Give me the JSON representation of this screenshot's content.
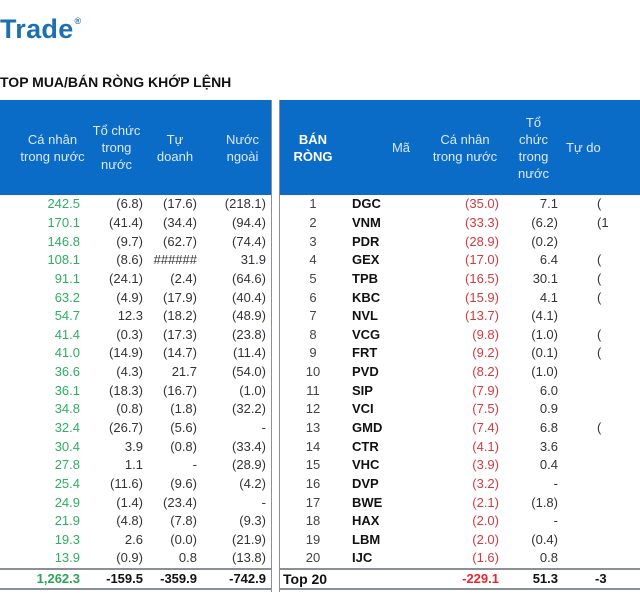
{
  "logo": {
    "text": "Trade",
    "mark": "®"
  },
  "title": "TOP MUA/BÁN RÒNG KHỚP LỆNH",
  "colors": {
    "header_bg": "#0b6cc7",
    "positive": "#2fae63",
    "negative": "#d23a40",
    "logo": "#1d70b0"
  },
  "buy_table": {
    "headers": [
      "Cá nhân trong nước",
      "Tổ chức trong nước",
      "Tự doanh",
      "Nước ngoài"
    ],
    "rows": [
      [
        "242.5",
        "(6.8)",
        "(17.6)",
        "(218.1)"
      ],
      [
        "170.1",
        "(41.4)",
        "(34.4)",
        "(94.4)"
      ],
      [
        "146.8",
        "(9.7)",
        "(62.7)",
        "(74.4)"
      ],
      [
        "108.1",
        "(8.6)",
        "######",
        "31.9"
      ],
      [
        "91.1",
        "(24.1)",
        "(2.4)",
        "(64.6)"
      ],
      [
        "63.2",
        "(4.9)",
        "(17.9)",
        "(40.4)"
      ],
      [
        "54.7",
        "12.3",
        "(18.2)",
        "(48.9)"
      ],
      [
        "41.4",
        "(0.3)",
        "(17.3)",
        "(23.8)"
      ],
      [
        "41.0",
        "(14.9)",
        "(14.7)",
        "(11.4)"
      ],
      [
        "36.6",
        "(4.3)",
        "21.7",
        "(54.0)"
      ],
      [
        "36.1",
        "(18.3)",
        "(16.7)",
        "(1.0)"
      ],
      [
        "34.8",
        "(0.8)",
        "(1.8)",
        "(32.2)"
      ],
      [
        "32.4",
        "(26.7)",
        "(5.6)",
        "-"
      ],
      [
        "30.4",
        "3.9",
        "(0.8)",
        "(33.4)"
      ],
      [
        "27.8",
        "1.1",
        "-",
        "(28.9)"
      ],
      [
        "25.4",
        "(11.6)",
        "(9.6)",
        "(4.2)"
      ],
      [
        "24.9",
        "(1.4)",
        "(23.4)",
        "-"
      ],
      [
        "21.9",
        "(4.8)",
        "(7.8)",
        "(9.3)"
      ],
      [
        "19.3",
        "2.6",
        "(0.0)",
        "(21.9)"
      ],
      [
        "13.9",
        "(0.9)",
        "0.8",
        "(13.8)"
      ]
    ],
    "total": [
      "1,262.3",
      "-159.5",
      "-359.9",
      "-742.9"
    ]
  },
  "sell_table": {
    "headers": [
      "BÁN RÒNG",
      "Mã",
      "Cá nhân trong nước",
      "Tổ chức trong nước",
      "Tự do"
    ],
    "rows": [
      [
        "1",
        "DGC",
        "(35.0)",
        "7.1",
        "("
      ],
      [
        "2",
        "VNM",
        "(33.3)",
        "(6.2)",
        "(1"
      ],
      [
        "3",
        "PDR",
        "(28.9)",
        "(0.2)",
        ""
      ],
      [
        "4",
        "GEX",
        "(17.0)",
        "6.4",
        "("
      ],
      [
        "5",
        "TPB",
        "(16.5)",
        "30.1",
        "("
      ],
      [
        "6",
        "KBC",
        "(15.9)",
        "4.1",
        "("
      ],
      [
        "7",
        "NVL",
        "(13.7)",
        "(4.1)",
        ""
      ],
      [
        "8",
        "VCG",
        "(9.8)",
        "(1.0)",
        "("
      ],
      [
        "9",
        "FRT",
        "(9.2)",
        "(0.1)",
        "("
      ],
      [
        "10",
        "PVD",
        "(8.2)",
        "(1.0)",
        ""
      ],
      [
        "11",
        "SIP",
        "(7.9)",
        "6.0",
        ""
      ],
      [
        "12",
        "VCI",
        "(7.5)",
        "0.9",
        ""
      ],
      [
        "13",
        "GMD",
        "(7.4)",
        "6.8",
        "("
      ],
      [
        "14",
        "CTR",
        "(4.1)",
        "3.6",
        ""
      ],
      [
        "15",
        "VHC",
        "(3.9)",
        "0.4",
        ""
      ],
      [
        "16",
        "DVP",
        "(3.2)",
        "-",
        ""
      ],
      [
        "17",
        "BWE",
        "(2.1)",
        "(1.8)",
        ""
      ],
      [
        "18",
        "HAX",
        "(2.0)",
        "-",
        ""
      ],
      [
        "19",
        "LBM",
        "(2.0)",
        "(0.4)",
        ""
      ],
      [
        "20",
        "IJC",
        "(1.6)",
        "0.8",
        ""
      ]
    ],
    "total": [
      "Top 20",
      "-229.1",
      "51.3",
      "-3"
    ]
  }
}
